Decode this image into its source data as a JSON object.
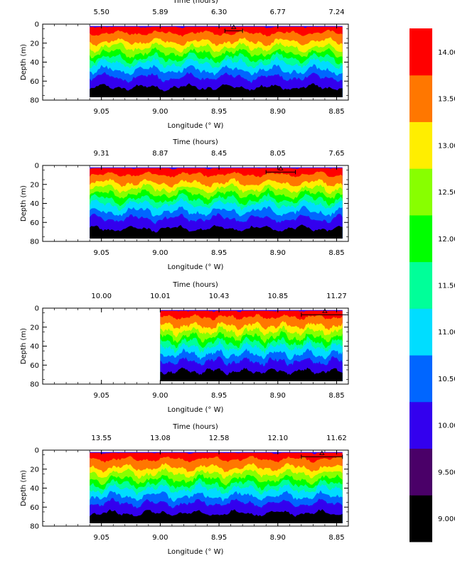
{
  "chart_data": [
    {
      "type": "heatmap",
      "xlabel": "Longitude (° W)",
      "ylabel": "Depth (m)",
      "top_axis_label": "Time (hours)",
      "x_ticks": [
        "9.05",
        "9.00",
        "8.95",
        "8.90",
        "8.85"
      ],
      "x_tick_values": [
        9.05,
        9.0,
        8.95,
        8.9,
        8.85
      ],
      "xlim": [
        9.1,
        8.84
      ],
      "top_ticks": [
        "5.50",
        "5.89",
        "6.30",
        "6.77",
        "7.24"
      ],
      "y_ticks": [
        "0",
        "20",
        "40",
        "60",
        "80"
      ],
      "ylim": [
        0,
        80
      ],
      "data_lon_range": [
        9.06,
        8.845
      ],
      "track_lon_range": [
        8.945,
        8.93
      ]
    },
    {
      "type": "heatmap",
      "xlabel": "Longitude (° W)",
      "ylabel": "Depth (m)",
      "top_axis_label": "Time (hours)",
      "x_ticks": [
        "9.05",
        "9.00",
        "8.95",
        "8.90",
        "8.85"
      ],
      "x_tick_values": [
        9.05,
        9.0,
        8.95,
        8.9,
        8.85
      ],
      "xlim": [
        9.1,
        8.84
      ],
      "top_ticks": [
        "9.31",
        "8.87",
        "8.45",
        "8.05",
        "7.65"
      ],
      "y_ticks": [
        "0",
        "20",
        "40",
        "60",
        "80"
      ],
      "ylim": [
        0,
        80
      ],
      "data_lon_range": [
        9.06,
        8.845
      ],
      "track_lon_range": [
        8.91,
        8.885
      ]
    },
    {
      "type": "heatmap",
      "xlabel": "Longitude (° W)",
      "ylabel": "Depth (m)",
      "top_axis_label": "Time (hours)",
      "x_ticks": [
        "9.05",
        "9.00",
        "8.95",
        "8.90",
        "8.85"
      ],
      "x_tick_values": [
        9.05,
        9.0,
        8.95,
        8.9,
        8.85
      ],
      "xlim": [
        9.1,
        8.84
      ],
      "top_ticks": [
        "10.00",
        "10.01",
        "10.43",
        "10.85",
        "11.27"
      ],
      "y_ticks": [
        "0",
        "20",
        "40",
        "60",
        "80"
      ],
      "ylim": [
        0,
        80
      ],
      "data_lon_range": [
        9.0,
        8.845
      ],
      "track_lon_range": [
        8.88,
        8.84
      ]
    },
    {
      "type": "heatmap",
      "xlabel": "Longitude (° W)",
      "ylabel": "Depth (m)",
      "top_axis_label": "Time (hours)",
      "x_ticks": [
        "9.05",
        "9.00",
        "8.95",
        "8.90",
        "8.85"
      ],
      "x_tick_values": [
        9.05,
        9.0,
        8.95,
        8.9,
        8.85
      ],
      "xlim": [
        9.1,
        8.84
      ],
      "top_ticks": [
        "13.55",
        "13.08",
        "12.58",
        "12.10",
        "11.62"
      ],
      "y_ticks": [
        "0",
        "20",
        "40",
        "60",
        "80"
      ],
      "ylim": [
        0,
        80
      ],
      "data_lon_range": [
        9.06,
        8.845
      ],
      "track_lon_range": [
        8.88,
        8.845
      ]
    }
  ],
  "colorbar": {
    "colors": [
      "#000000",
      "#4a0068",
      "#3300ee",
      "#0066ff",
      "#00ddff",
      "#00ff99",
      "#00ff00",
      "#88ff00",
      "#ffee00",
      "#ff7700",
      "#ff0000"
    ],
    "labels": [
      "9.000",
      "9.500",
      "10.00",
      "10.50",
      "11.00",
      "11.50",
      "12.00",
      "12.50",
      "13.00",
      "13.50",
      "14.00"
    ]
  }
}
